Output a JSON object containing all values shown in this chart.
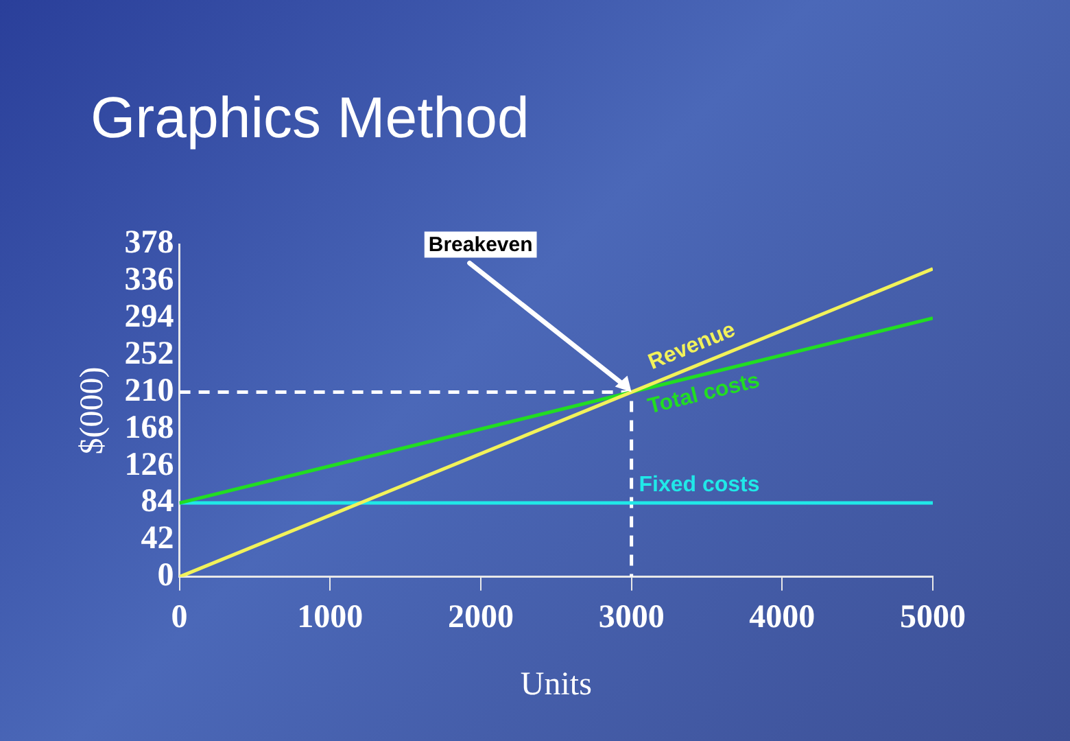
{
  "chart_data": {
    "type": "line",
    "title": "Graphics Method",
    "xlabel": "Units",
    "ylabel": "$(000)",
    "xlim": [
      0,
      5000
    ],
    "xticks": [
      0,
      1000,
      2000,
      3000,
      4000,
      5000
    ],
    "ylim": [
      0,
      378
    ],
    "yticks": [
      0,
      42,
      84,
      126,
      168,
      210,
      252,
      294,
      336,
      378
    ],
    "grid": false,
    "legend": false,
    "marker": "none",
    "series": [
      {
        "name": "Revenue",
        "color": "#f2f25a",
        "x": [
          0,
          5000
        ],
        "values": [
          0,
          350
        ]
      },
      {
        "name": "Total costs",
        "color": "#22dd22",
        "x": [
          0,
          5000
        ],
        "values": [
          84,
          294
        ]
      },
      {
        "name": "Fixed costs",
        "color": "#20e8e8",
        "x": [
          0,
          5000
        ],
        "values": [
          84,
          84
        ]
      },
      {
        "color": "#ffffff",
        "line_style": "dashed",
        "x": [
          0,
          3000,
          3000
        ],
        "values": [
          210,
          210,
          0
        ]
      }
    ],
    "annotations": [
      {
        "text": "Breakeven",
        "x": 3000,
        "y": 210
      }
    ]
  }
}
